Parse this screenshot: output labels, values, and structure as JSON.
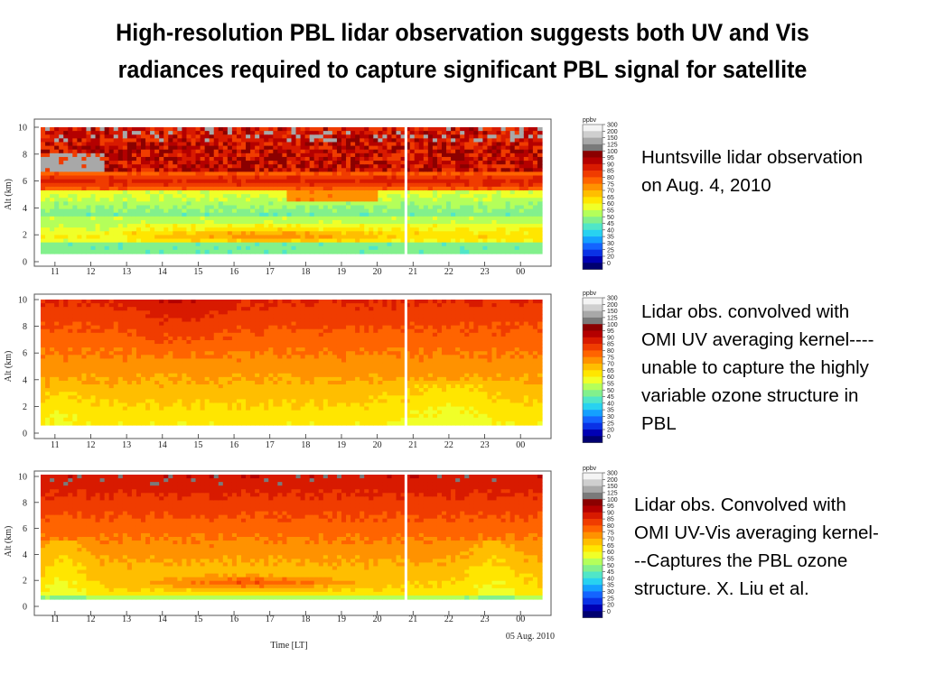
{
  "title": {
    "line1": "High-resolution PBL lidar observation suggests both UV and Vis",
    "line2": "radiances required to capture significant PBL signal for satellite"
  },
  "colorbar": {
    "unit": "ppbv",
    "levels": [
      "300",
      "200",
      "150",
      "125",
      "100",
      "95",
      "90",
      "85",
      "80",
      "75",
      "70",
      "65",
      "60",
      "55",
      "50",
      "45",
      "40",
      "35",
      "30",
      "25",
      "20",
      "0"
    ],
    "colors": [
      "#f4f4f4",
      "#cfcfcf",
      "#a8a8a8",
      "#7a7a7a",
      "#8b0000",
      "#b40000",
      "#d81a00",
      "#f03c00",
      "#ff6400",
      "#ff9200",
      "#ffbe00",
      "#ffe600",
      "#f0ff28",
      "#b4ff5a",
      "#82f08c",
      "#50e6c8",
      "#28d2f0",
      "#14a0ff",
      "#1464ff",
      "#0a32e6",
      "#0000b4",
      "#000070"
    ]
  },
  "chart_data": [
    {
      "type": "heatmap",
      "ylabel": "Alt (km)",
      "yticks": [
        "0",
        "2",
        "4",
        "6",
        "8",
        "10"
      ],
      "ylim": [
        0,
        10
      ],
      "xticks": [
        "11",
        "12",
        "13",
        "14",
        "15",
        "16",
        "17",
        "18",
        "19",
        "20",
        "21",
        "22",
        "23",
        "00"
      ],
      "xlim": [
        10.6,
        24.6
      ],
      "xlabel": "",
      "date": "",
      "marker_time": 20.8,
      "caption": [
        "Huntsville lidar observation",
        "on Aug. 4, 2010"
      ]
    },
    {
      "type": "heatmap",
      "ylabel": "Alt (km)",
      "yticks": [
        "0",
        "2",
        "4",
        "6",
        "8",
        "10"
      ],
      "ylim": [
        0,
        10
      ],
      "xticks": [
        "11",
        "12",
        "13",
        "14",
        "15",
        "16",
        "17",
        "18",
        "19",
        "20",
        "21",
        "22",
        "23",
        "00"
      ],
      "xlim": [
        10.6,
        24.6
      ],
      "xlabel": "",
      "date": "",
      "marker_time": 20.8,
      "caption": [
        "Lidar obs. convolved with",
        "OMI UV averaging kernel----",
        "unable to capture the highly",
        "variable ozone structure in",
        "PBL"
      ]
    },
    {
      "type": "heatmap",
      "ylabel": "Alt (km)",
      "yticks": [
        "0",
        "2",
        "4",
        "6",
        "8",
        "10"
      ],
      "ylim": [
        0,
        10
      ],
      "xticks": [
        "11",
        "12",
        "13",
        "14",
        "15",
        "16",
        "17",
        "18",
        "19",
        "20",
        "21",
        "22",
        "23",
        "00"
      ],
      "xlim": [
        10.6,
        24.6
      ],
      "xlabel": "Time [LT]",
      "date": "05 Aug. 2010",
      "marker_time": 20.8,
      "caption": [
        "Lidar obs. Convolved with",
        "OMI UV-Vis averaging kernel-",
        "--Captures the PBL ozone",
        "structure. X. Liu et al."
      ]
    }
  ]
}
